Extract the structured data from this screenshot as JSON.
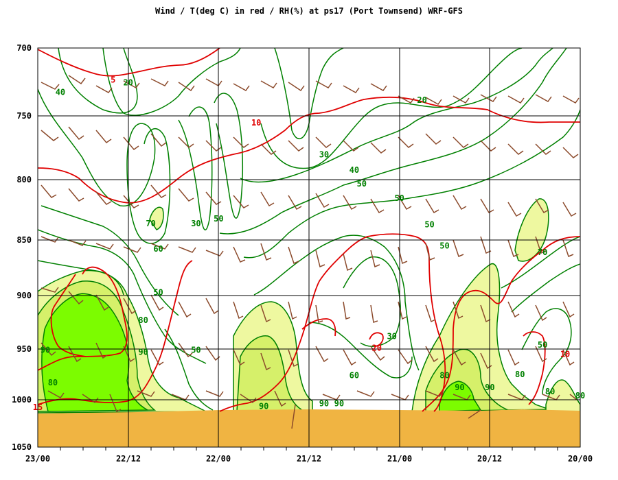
{
  "chart_data": {
    "type": "meteogram-contour",
    "title": "Wind / T(deg C) in red / RH(%) at ps17 (Port Townsend)  WRF-GFS",
    "x_ticks": [
      "23/00",
      "22/12",
      "22/00",
      "21/12",
      "21/00",
      "20/12",
      "20/00"
    ],
    "y_ticks": [
      "700",
      "750",
      "800",
      "850",
      "900",
      "950",
      "1000",
      "1050"
    ],
    "y_range": [
      700,
      1050
    ],
    "x_range": [
      "23/00",
      "20/00"
    ],
    "grid": true,
    "colors": {
      "temperature": "#e00000",
      "rh": "#008000",
      "wind": "#8b4a2b",
      "rh_70_90": "#eef8a0",
      "rh_80_90": "#d6f06a",
      "rh_gt_90": "#7cfc00",
      "terrain": "#f0b442"
    },
    "temperature_labels": [
      {
        "text": "5",
        "hour": 10,
        "p": 725
      },
      {
        "text": "10",
        "hour": 29,
        "p": 757
      },
      {
        "text": "10",
        "hour": 70,
        "p": 957
      },
      {
        "text": "15",
        "hour": 0,
        "p": 1010
      },
      {
        "text": "15",
        "hour": 105,
        "p": 912
      },
      {
        "text": "15",
        "hour": 118,
        "p": 905
      },
      {
        "text": "20",
        "hour": 45,
        "p": 951
      },
      {
        "text": "20",
        "hour": 112,
        "p": 977
      },
      {
        "text": "20",
        "hour": 115,
        "p": 946
      }
    ],
    "rh_labels": [
      {
        "text": "40",
        "hour": 3,
        "p": 734
      },
      {
        "text": "20",
        "hour": 12,
        "p": 727
      },
      {
        "text": "70",
        "hour": 15,
        "p": 838
      },
      {
        "text": "30",
        "hour": 21,
        "p": 838
      },
      {
        "text": "50",
        "hour": 24,
        "p": 834
      },
      {
        "text": "60",
        "hour": 16,
        "p": 860
      },
      {
        "text": "50",
        "hour": 16,
        "p": 899
      },
      {
        "text": "80",
        "hour": 14,
        "p": 925
      },
      {
        "text": "90",
        "hour": 14,
        "p": 955
      },
      {
        "text": "50",
        "hour": 21,
        "p": 953
      },
      {
        "text": "90",
        "hour": 1,
        "p": 953
      },
      {
        "text": "80",
        "hour": 2,
        "p": 985
      },
      {
        "text": "30",
        "hour": 38,
        "p": 782
      },
      {
        "text": "40",
        "hour": 42,
        "p": 794
      },
      {
        "text": "50",
        "hour": 43,
        "p": 805
      },
      {
        "text": "50",
        "hour": 48,
        "p": 817
      },
      {
        "text": "50",
        "hour": 52,
        "p": 839
      },
      {
        "text": "20",
        "hour": 51,
        "p": 740
      },
      {
        "text": "50",
        "hour": 54,
        "p": 857
      },
      {
        "text": "30",
        "hour": 47,
        "p": 940
      },
      {
        "text": "60",
        "hour": 42,
        "p": 978
      },
      {
        "text": "90",
        "hour": 30,
        "p": 1009
      },
      {
        "text": "90",
        "hour": 38,
        "p": 1006
      },
      {
        "text": "90",
        "hour": 40,
        "p": 1006
      },
      {
        "text": "80",
        "hour": 54,
        "p": 978
      },
      {
        "text": "90",
        "hour": 56,
        "p": 990
      },
      {
        "text": "90",
        "hour": 60,
        "p": 990
      },
      {
        "text": "80",
        "hour": 64,
        "p": 977
      },
      {
        "text": "70",
        "hour": 67,
        "p": 863
      },
      {
        "text": "50",
        "hour": 67,
        "p": 948
      },
      {
        "text": "80",
        "hour": 72,
        "p": 998
      },
      {
        "text": "80",
        "hour": 68,
        "p": 994
      }
    ],
    "rh_contour_levels": [
      "20",
      "30",
      "40",
      "50",
      "60",
      "70",
      "80",
      "90"
    ],
    "temperature_contour_levels": [
      "5",
      "10",
      "15",
      "20"
    ]
  }
}
